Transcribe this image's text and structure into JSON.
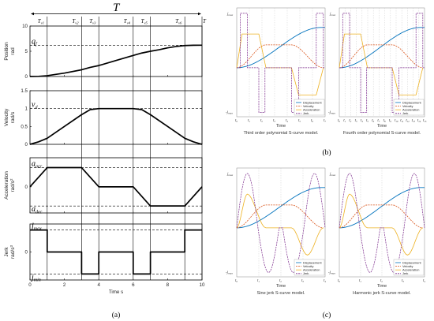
{
  "captions": {
    "a": "(a)",
    "b": "(b)",
    "c": "(c)"
  },
  "chart_data": [
    {
      "id": "a",
      "type": "line",
      "top_label": "T",
      "time_axis": {
        "range": [
          0,
          10
        ],
        "ticks": [
          0,
          2,
          4,
          6,
          8,
          10
        ],
        "label": "Time s"
      },
      "segment_markers": [
        {
          "label": "T_{v1}",
          "t": 1
        },
        {
          "label": "T_{v2}",
          "t": 3
        },
        {
          "label": "T_{v3}",
          "t": 4
        },
        {
          "label": "T_{v4}",
          "t": 6
        },
        {
          "label": "T_{v5}",
          "t": 7
        },
        {
          "label": "T_{v6}",
          "t": 9
        },
        {
          "label": "T",
          "t": 10
        }
      ],
      "subplots": [
        {
          "name": "position",
          "ylabel": "Position",
          "yunit": "rad",
          "ylim": [
            0,
            10
          ],
          "yticks": [
            0,
            5,
            10
          ],
          "ref_lines": [
            {
              "label": "q_f",
              "y": 6.2
            }
          ],
          "x": [
            0,
            0.5,
            1,
            2,
            3,
            3.5,
            4,
            5,
            6,
            6.5,
            7,
            7.5,
            8,
            8.5,
            9,
            9.5,
            10
          ],
          "y": [
            0,
            0.03,
            0.17,
            0.67,
            1.33,
            1.81,
            2.17,
            3.17,
            4.17,
            4.65,
            5.0,
            5.3,
            5.67,
            5.95,
            6.13,
            6.19,
            6.2
          ]
        },
        {
          "name": "velocity",
          "ylabel": "Velocity",
          "yunit": "rad/s",
          "ylim": [
            0,
            1.5
          ],
          "yticks": [
            0,
            0.5,
            1,
            1.5
          ],
          "ref_lines": [
            {
              "label": "v_d",
              "y": 1.0
            }
          ],
          "x": [
            0,
            0.5,
            1,
            2,
            3,
            3.5,
            4,
            6,
            6.5,
            7,
            8,
            9,
            9.5,
            10
          ],
          "y": [
            0,
            0.07,
            0.17,
            0.5,
            0.83,
            0.97,
            1.0,
            1.0,
            0.97,
            0.83,
            0.5,
            0.17,
            0.07,
            0
          ]
        },
        {
          "name": "acceleration",
          "ylabel": "Acceleration",
          "yunit": "rad/s^2",
          "ylim": [
            -0.45,
            0.5
          ],
          "yticks": [
            0
          ],
          "ref_lines": [
            {
              "label": "a_acc",
              "y": 0.33
            },
            {
              "label": "a_dec",
              "y": -0.33
            }
          ],
          "x": [
            0,
            1,
            3,
            4,
            6,
            7,
            9,
            10
          ],
          "y": [
            0,
            0.33,
            0.33,
            0,
            0,
            -0.33,
            -0.33,
            0
          ]
        },
        {
          "name": "jerk",
          "ylabel": "Jerk",
          "yunit": "rad/s^3",
          "ylim": [
            -0.42,
            0.42
          ],
          "yticks": [
            0
          ],
          "ref_lines": [
            {
              "label": "j_max",
              "y": 0.33
            },
            {
              "label": "j_min",
              "y": -0.33
            }
          ],
          "x": [
            0,
            1,
            1,
            3,
            3,
            4,
            4,
            6,
            6,
            7,
            7,
            9,
            9,
            10
          ],
          "y": [
            0.33,
            0.33,
            0,
            0,
            -0.33,
            -0.33,
            0,
            0,
            -0.33,
            -0.33,
            0,
            0,
            0.33,
            0.33
          ]
        }
      ]
    },
    {
      "id": "b1",
      "type": "line",
      "title": "Third order polynomial S-curve model.",
      "xlabel": "Time",
      "y_tick_labels": [
        "j_max",
        "-j_max"
      ],
      "x_tick_labels": [
        "t_0",
        "t_1",
        "t_2",
        "t_3",
        "t_4",
        "t_5",
        "t_6",
        "t_7"
      ],
      "legend": [
        "Displacement",
        "Velocity",
        "Acceleration",
        "Jerk"
      ],
      "legend_position": "bottom-right"
    },
    {
      "id": "b2",
      "type": "line",
      "title": "Fourth order polynomial S-curve model.",
      "xlabel": "Time",
      "y_tick_labels": [
        "j_max",
        "-j_max"
      ],
      "x_tick_labels": [
        "t_0",
        "t_1",
        "t_2",
        "t_3",
        "t_4",
        "t_5",
        "t_6",
        "t_7",
        "t_8",
        "t_9",
        "t_10",
        "t_11",
        "t_12",
        "t_13",
        "t_14",
        "t_15"
      ],
      "legend": [
        "Displacement",
        "Velocity",
        "Acceleration",
        "Jerk"
      ],
      "legend_position": "bottom-right"
    },
    {
      "id": "c1",
      "type": "line",
      "title": "Sine jerk S-curve model.",
      "xlabel": "Time",
      "y_tick_labels": [
        "j_max",
        "-j_max"
      ],
      "x_tick_labels": [
        "t_0",
        "t_1",
        "t_2",
        "t_3",
        "t_4"
      ],
      "legend": [
        "Displacement",
        "Velocity",
        "Acceleration",
        "Jerk"
      ],
      "legend_position": "bottom-right"
    },
    {
      "id": "c2",
      "type": "line",
      "title": "Harmonic jerk S-curve model.",
      "xlabel": "Time",
      "y_tick_labels": [
        "j_max",
        "-j_max"
      ],
      "x_tick_labels": [
        "t_0",
        "t_1",
        "t_2",
        "t_3",
        "t_4"
      ],
      "legend": [
        "Displacement",
        "Velocity",
        "Acceleration",
        "Jerk"
      ],
      "legend_position": "bottom-right"
    }
  ],
  "colors": {
    "displacement": "#0072bd",
    "velocity": "#d95319",
    "acceleration": "#edb120",
    "jerk": "#7e2f8e",
    "panel_a_line": "#000000"
  }
}
